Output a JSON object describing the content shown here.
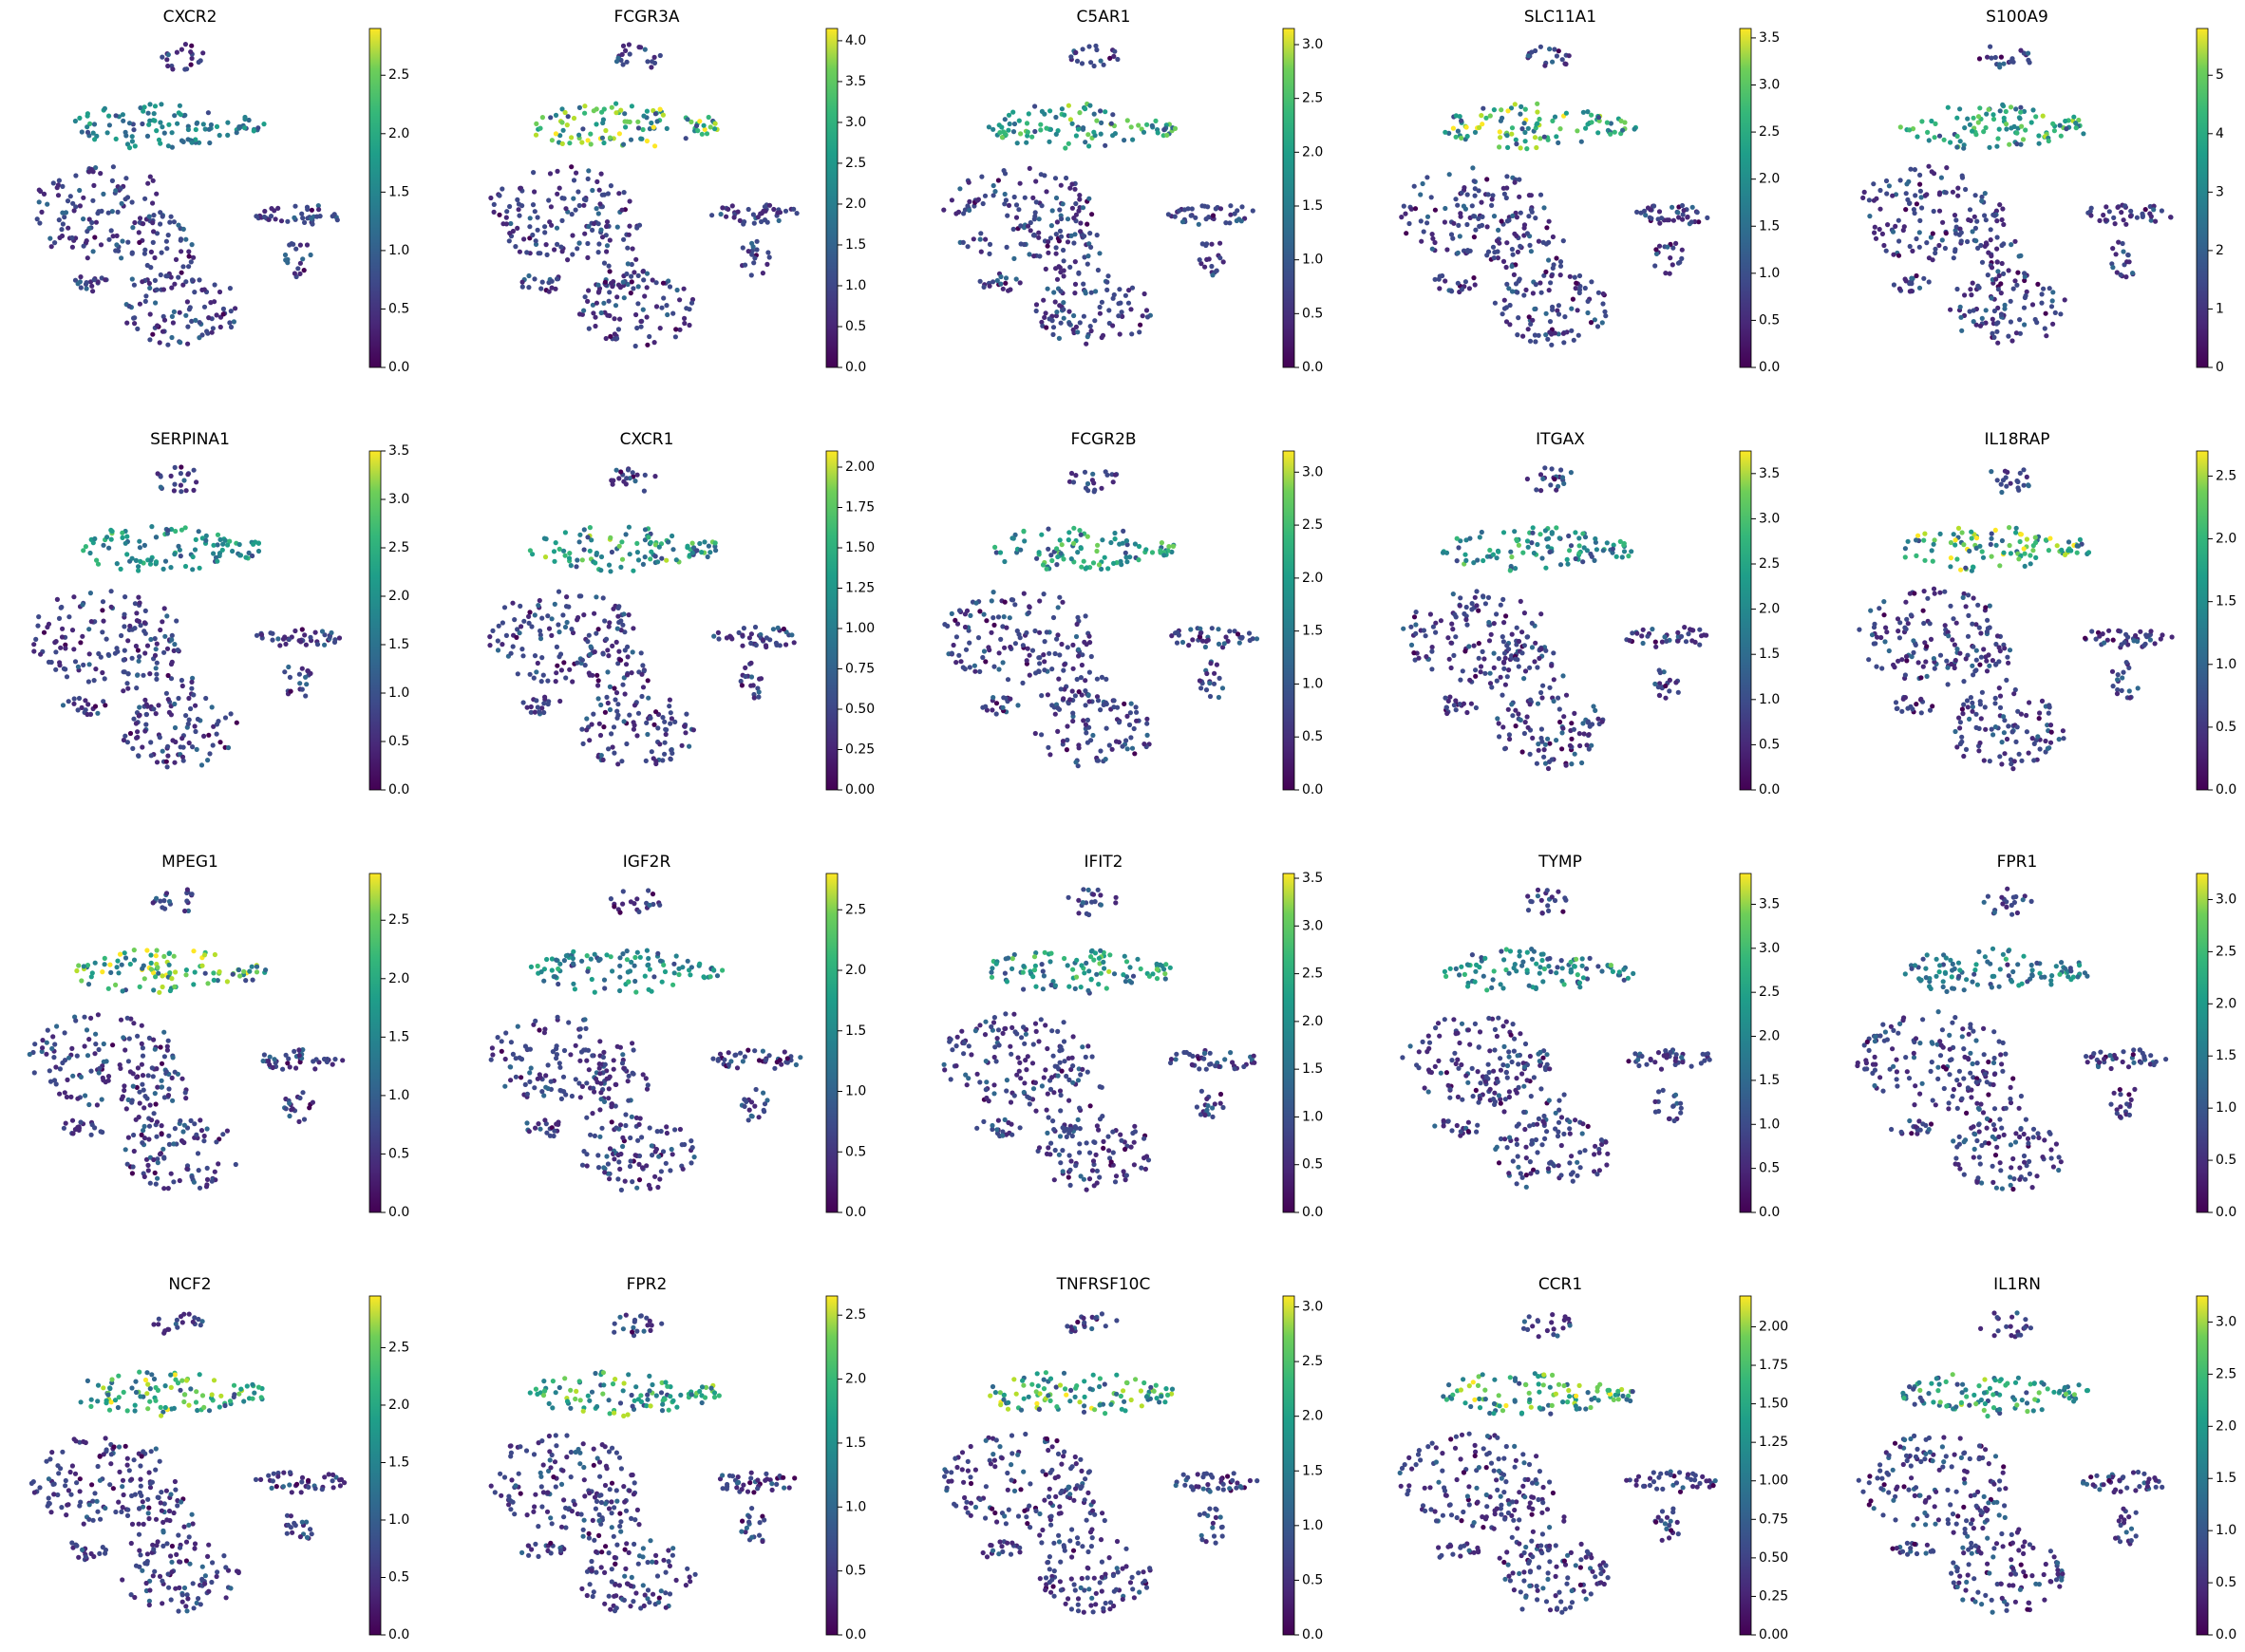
{
  "chart_data": [
    {
      "type": "umap",
      "title": "CXCR2",
      "clim": [
        0,
        2.9
      ],
      "cticks": [
        {
          "value": 0,
          "label": "0.0"
        },
        {
          "value": 0.5,
          "label": "0.5"
        },
        {
          "value": 1,
          "label": "1.0"
        },
        {
          "value": 1.5,
          "label": "1.5"
        },
        {
          "value": 2,
          "label": "2.0"
        },
        {
          "value": 2.5,
          "label": "2.5"
        }
      ]
    },
    {
      "type": "umap",
      "title": "FCGR3A",
      "clim": [
        0,
        4.15
      ],
      "cticks": [
        {
          "value": 0,
          "label": "0.0"
        },
        {
          "value": 0.5,
          "label": "0.5"
        },
        {
          "value": 1,
          "label": "1.0"
        },
        {
          "value": 1.5,
          "label": "1.5"
        },
        {
          "value": 2,
          "label": "2.0"
        },
        {
          "value": 2.5,
          "label": "2.5"
        },
        {
          "value": 3,
          "label": "3.0"
        },
        {
          "value": 3.5,
          "label": "3.5"
        },
        {
          "value": 4,
          "label": "4.0"
        }
      ]
    },
    {
      "type": "umap",
      "title": "C5AR1",
      "clim": [
        0,
        3.15
      ],
      "cticks": [
        {
          "value": 0,
          "label": "0.0"
        },
        {
          "value": 0.5,
          "label": "0.5"
        },
        {
          "value": 1,
          "label": "1.0"
        },
        {
          "value": 1.5,
          "label": "1.5"
        },
        {
          "value": 2,
          "label": "2.0"
        },
        {
          "value": 2.5,
          "label": "2.5"
        },
        {
          "value": 3,
          "label": "3.0"
        }
      ]
    },
    {
      "type": "umap",
      "title": "SLC11A1",
      "clim": [
        0,
        3.6
      ],
      "cticks": [
        {
          "value": 0,
          "label": "0.0"
        },
        {
          "value": 0.5,
          "label": "0.5"
        },
        {
          "value": 1,
          "label": "1.0"
        },
        {
          "value": 1.5,
          "label": "1.5"
        },
        {
          "value": 2,
          "label": "2.0"
        },
        {
          "value": 2.5,
          "label": "2.5"
        },
        {
          "value": 3,
          "label": "3.0"
        },
        {
          "value": 3.5,
          "label": "3.5"
        }
      ]
    },
    {
      "type": "umap",
      "title": "S100A9",
      "clim": [
        0,
        5.8
      ],
      "cticks": [
        0,
        1,
        2,
        3,
        4,
        5
      ]
    },
    {
      "type": "umap",
      "title": "SERPINA1",
      "clim": [
        0,
        3.5
      ],
      "cticks": [
        {
          "value": 0,
          "label": "0.0"
        },
        {
          "value": 0.5,
          "label": "0.5"
        },
        {
          "value": 1,
          "label": "1.0"
        },
        {
          "value": 1.5,
          "label": "1.5"
        },
        {
          "value": 2,
          "label": "2.0"
        },
        {
          "value": 2.5,
          "label": "2.5"
        },
        {
          "value": 3,
          "label": "3.0"
        },
        {
          "value": 3.5,
          "label": "3.5"
        }
      ]
    },
    {
      "type": "umap",
      "title": "CXCR1",
      "clim": [
        0,
        2.1
      ],
      "cticks": [
        {
          "value": 0,
          "label": "0.00"
        },
        {
          "value": 0.25,
          "label": "0.25"
        },
        {
          "value": 0.5,
          "label": "0.50"
        },
        {
          "value": 0.75,
          "label": "0.75"
        },
        {
          "value": 1,
          "label": "1.00"
        },
        {
          "value": 1.25,
          "label": "1.25"
        },
        {
          "value": 1.5,
          "label": "1.50"
        },
        {
          "value": 1.75,
          "label": "1.75"
        },
        {
          "value": 2,
          "label": "2.00"
        }
      ]
    },
    {
      "type": "umap",
      "title": "FCGR2B",
      "clim": [
        0,
        3.2
      ],
      "cticks": [
        {
          "value": 0,
          "label": "0.0"
        },
        {
          "value": 0.5,
          "label": "0.5"
        },
        {
          "value": 1,
          "label": "1.0"
        },
        {
          "value": 1.5,
          "label": "1.5"
        },
        {
          "value": 2,
          "label": "2.0"
        },
        {
          "value": 2.5,
          "label": "2.5"
        },
        {
          "value": 3,
          "label": "3.0"
        }
      ]
    },
    {
      "type": "umap",
      "title": "ITGAX",
      "clim": [
        0,
        3.75
      ],
      "cticks": [
        {
          "value": 0,
          "label": "0.0"
        },
        {
          "value": 0.5,
          "label": "0.5"
        },
        {
          "value": 1,
          "label": "1.0"
        },
        {
          "value": 1.5,
          "label": "1.5"
        },
        {
          "value": 2,
          "label": "2.0"
        },
        {
          "value": 2.5,
          "label": "2.5"
        },
        {
          "value": 3,
          "label": "3.0"
        },
        {
          "value": 3.5,
          "label": "3.5"
        }
      ]
    },
    {
      "type": "umap",
      "title": "IL18RAP",
      "clim": [
        0,
        2.7
      ],
      "cticks": [
        {
          "value": 0,
          "label": "0.0"
        },
        {
          "value": 0.5,
          "label": "0.5"
        },
        {
          "value": 1,
          "label": "1.0"
        },
        {
          "value": 1.5,
          "label": "1.5"
        },
        {
          "value": 2,
          "label": "2.0"
        },
        {
          "value": 2.5,
          "label": "2.5"
        }
      ]
    },
    {
      "type": "umap",
      "title": "MPEG1",
      "clim": [
        0,
        2.9
      ],
      "cticks": [
        {
          "value": 0,
          "label": "0.0"
        },
        {
          "value": 0.5,
          "label": "0.5"
        },
        {
          "value": 1,
          "label": "1.0"
        },
        {
          "value": 1.5,
          "label": "1.5"
        },
        {
          "value": 2,
          "label": "2.0"
        },
        {
          "value": 2.5,
          "label": "2.5"
        }
      ]
    },
    {
      "type": "umap",
      "title": "IGF2R",
      "clim": [
        0,
        2.8
      ],
      "cticks": [
        {
          "value": 0,
          "label": "0.0"
        },
        {
          "value": 0.5,
          "label": "0.5"
        },
        {
          "value": 1,
          "label": "1.0"
        },
        {
          "value": 1.5,
          "label": "1.5"
        },
        {
          "value": 2,
          "label": "2.0"
        },
        {
          "value": 2.5,
          "label": "2.5"
        }
      ]
    },
    {
      "type": "umap",
      "title": "IFIT2",
      "clim": [
        0,
        3.55
      ],
      "cticks": [
        {
          "value": 0,
          "label": "0.0"
        },
        {
          "value": 0.5,
          "label": "0.5"
        },
        {
          "value": 1,
          "label": "1.0"
        },
        {
          "value": 1.5,
          "label": "1.5"
        },
        {
          "value": 2,
          "label": "2.0"
        },
        {
          "value": 2.5,
          "label": "2.5"
        },
        {
          "value": 3,
          "label": "3.0"
        },
        {
          "value": 3.5,
          "label": "3.5"
        }
      ]
    },
    {
      "type": "umap",
      "title": "TYMP",
      "clim": [
        0,
        3.85
      ],
      "cticks": [
        {
          "value": 0,
          "label": "0.0"
        },
        {
          "value": 0.5,
          "label": "0.5"
        },
        {
          "value": 1,
          "label": "1.0"
        },
        {
          "value": 1.5,
          "label": "1.5"
        },
        {
          "value": 2,
          "label": "2.0"
        },
        {
          "value": 2.5,
          "label": "2.5"
        },
        {
          "value": 3,
          "label": "3.0"
        },
        {
          "value": 3.5,
          "label": "3.5"
        }
      ]
    },
    {
      "type": "umap",
      "title": "FPR1",
      "clim": [
        0,
        3.25
      ],
      "cticks": [
        {
          "value": 0,
          "label": "0.0"
        },
        {
          "value": 0.5,
          "label": "0.5"
        },
        {
          "value": 1,
          "label": "1.0"
        },
        {
          "value": 1.5,
          "label": "1.5"
        },
        {
          "value": 2,
          "label": "2.0"
        },
        {
          "value": 2.5,
          "label": "2.5"
        },
        {
          "value": 3,
          "label": "3.0"
        }
      ]
    },
    {
      "type": "umap",
      "title": "NCF2",
      "clim": [
        0,
        2.95
      ],
      "cticks": [
        {
          "value": 0,
          "label": "0.0"
        },
        {
          "value": 0.5,
          "label": "0.5"
        },
        {
          "value": 1,
          "label": "1.0"
        },
        {
          "value": 1.5,
          "label": "1.5"
        },
        {
          "value": 2,
          "label": "2.0"
        },
        {
          "value": 2.5,
          "label": "2.5"
        }
      ]
    },
    {
      "type": "umap",
      "title": "FPR2",
      "clim": [
        0,
        2.65
      ],
      "cticks": [
        {
          "value": 0,
          "label": "0.0"
        },
        {
          "value": 0.5,
          "label": "0.5"
        },
        {
          "value": 1,
          "label": "1.0"
        },
        {
          "value": 1.5,
          "label": "1.5"
        },
        {
          "value": 2,
          "label": "2.0"
        },
        {
          "value": 2.5,
          "label": "2.5"
        }
      ]
    },
    {
      "type": "umap",
      "title": "TNFRSF10C",
      "clim": [
        0,
        3.1
      ],
      "cticks": [
        {
          "value": 0,
          "label": "0.0"
        },
        {
          "value": 0.5,
          "label": "0.5"
        },
        {
          "value": 1,
          "label": "1.0"
        },
        {
          "value": 1.5,
          "label": "1.5"
        },
        {
          "value": 2,
          "label": "2.0"
        },
        {
          "value": 2.5,
          "label": "2.5"
        },
        {
          "value": 3,
          "label": "3.0"
        }
      ]
    },
    {
      "type": "umap",
      "title": "CCR1",
      "clim": [
        0,
        2.2
      ],
      "cticks": [
        {
          "value": 0,
          "label": "0.00"
        },
        {
          "value": 0.25,
          "label": "0.25"
        },
        {
          "value": 0.5,
          "label": "0.50"
        },
        {
          "value": 0.75,
          "label": "0.75"
        },
        {
          "value": 1,
          "label": "1.00"
        },
        {
          "value": 1.25,
          "label": "1.25"
        },
        {
          "value": 1.5,
          "label": "1.50"
        },
        {
          "value": 1.75,
          "label": "1.75"
        },
        {
          "value": 2,
          "label": "2.00"
        }
      ]
    },
    {
      "type": "umap",
      "title": "IL1RN",
      "clim": [
        0,
        3.25
      ],
      "cticks": [
        {
          "value": 0,
          "label": "0.0"
        },
        {
          "value": 0.5,
          "label": "0.5"
        },
        {
          "value": 1,
          "label": "1.0"
        },
        {
          "value": 1.5,
          "label": "1.5"
        },
        {
          "value": 2,
          "label": "2.0"
        },
        {
          "value": 2.5,
          "label": "2.5"
        },
        {
          "value": 3,
          "label": "3.0"
        }
      ]
    }
  ]
}
